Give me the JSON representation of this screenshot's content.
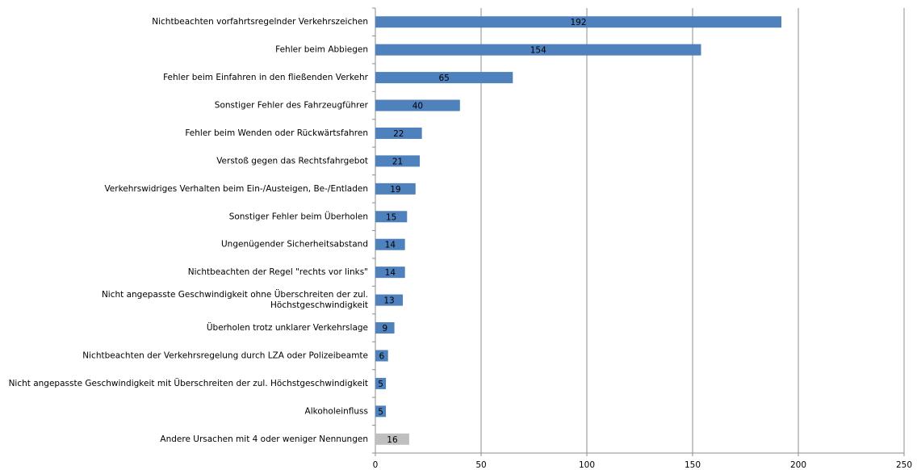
{
  "chart_data": {
    "type": "bar",
    "orientation": "horizontal",
    "categories": [
      "Nichtbeachten vorfahrtsregelnder Verkehrszeichen",
      "Fehler beim Abbiegen",
      "Fehler beim Einfahren in den fließenden Verkehr",
      "Sonstiger Fehler des Fahrzeugführer",
      "Fehler beim Wenden oder Rückwärtsfahren",
      "Verstoß gegen das Rechtsfahrgebot",
      "Verkehrswidriges Verhalten beim Ein-/Austeigen, Be-/Entladen",
      "Sonstiger Fehler beim Überholen",
      "Ungenügender Sicherheitsabstand",
      "Nichtbeachten der Regel \"rechts vor links\"",
      "Nicht angepasste Geschwindigkeit ohne Überschreiten der zul.\nHöchstgeschwindigkeit",
      "Überholen trotz unklarer Verkehrslage",
      "Nichtbeachten der Verkehrsregelung durch LZA oder Polizeibeamte",
      "Nicht angepasste Geschwindigkeit mit Überschreiten der zul. Höchstgeschwindigkeit",
      "Alkoholeinfluss",
      "Andere Ursachen mit 4 oder weniger Nennungen"
    ],
    "values": [
      192,
      154,
      65,
      40,
      22,
      21,
      19,
      15,
      14,
      14,
      13,
      9,
      6,
      5,
      5,
      16
    ],
    "colors": [
      "#4f81bd",
      "#4f81bd",
      "#4f81bd",
      "#4f81bd",
      "#4f81bd",
      "#4f81bd",
      "#4f81bd",
      "#4f81bd",
      "#4f81bd",
      "#4f81bd",
      "#4f81bd",
      "#4f81bd",
      "#4f81bd",
      "#4f81bd",
      "#4f81bd",
      "#bfbfbf"
    ],
    "xlim": [
      0,
      250
    ],
    "xticks": [
      0,
      50,
      100,
      150,
      200,
      250
    ],
    "grid": true
  }
}
